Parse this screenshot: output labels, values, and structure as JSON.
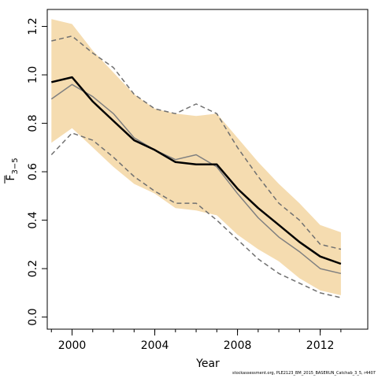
{
  "chart_data": {
    "type": "line",
    "xlabel": "Year",
    "ylabel": {
      "main": "F",
      "subscript": "3−5"
    },
    "xlim": [
      1998.8,
      2014.3
    ],
    "ylim": [
      -0.05,
      1.27
    ],
    "xticks": [
      2000,
      2004,
      2008,
      2012
    ],
    "xticks_minor": [
      1999,
      2000,
      2001,
      2002,
      2003,
      2004,
      2005,
      2006,
      2007,
      2008,
      2009,
      2010,
      2011,
      2012,
      2013
    ],
    "yticks": [
      0.0,
      0.2,
      0.4,
      0.6,
      0.8,
      1.0,
      1.2
    ],
    "ytick_labels": [
      "0.0",
      "0.2",
      "0.4",
      "0.6",
      "0.8",
      "1.0",
      "1.2"
    ],
    "x": [
      1999,
      2000,
      2001,
      2002,
      2003,
      2004,
      2005,
      2006,
      2007,
      2008,
      2009,
      2010,
      2011,
      2012,
      2013
    ],
    "band": {
      "upper": [
        1.23,
        1.21,
        1.1,
        1.01,
        0.92,
        0.86,
        0.84,
        0.83,
        0.84,
        0.74,
        0.64,
        0.55,
        0.47,
        0.38,
        0.35
      ],
      "lower": [
        0.72,
        0.78,
        0.7,
        0.62,
        0.55,
        0.51,
        0.45,
        0.44,
        0.42,
        0.34,
        0.28,
        0.23,
        0.16,
        0.11,
        0.09
      ],
      "color": "#f5dcb0"
    },
    "series": [
      {
        "values": [
          0.97,
          0.99,
          0.89,
          0.81,
          0.73,
          0.69,
          0.64,
          0.63,
          0.63,
          0.53,
          0.45,
          0.38,
          0.31,
          0.25,
          0.22
        ],
        "color": "#000000",
        "style": "solid-thick"
      },
      {
        "values": [
          0.9,
          0.96,
          0.91,
          0.84,
          0.74,
          0.69,
          0.65,
          0.67,
          0.62,
          0.51,
          0.41,
          0.33,
          0.27,
          0.2,
          0.18
        ],
        "color": "#808080",
        "style": "solid-thin"
      },
      {
        "values": [
          1.14,
          1.16,
          1.09,
          1.03,
          0.92,
          0.86,
          0.84,
          0.88,
          0.84,
          0.7,
          0.58,
          0.47,
          0.4,
          0.3,
          0.28
        ],
        "color": "#707070",
        "style": "dashed"
      },
      {
        "values": [
          0.67,
          0.76,
          0.73,
          0.66,
          0.58,
          0.52,
          0.47,
          0.47,
          0.4,
          0.32,
          0.24,
          0.18,
          0.14,
          0.1,
          0.08
        ],
        "color": "#707070",
        "style": "dashed"
      }
    ]
  },
  "footer": "stockassessment.org, PLE2123_BM_2015_BASERUN_Catchab_3_5, r4407"
}
